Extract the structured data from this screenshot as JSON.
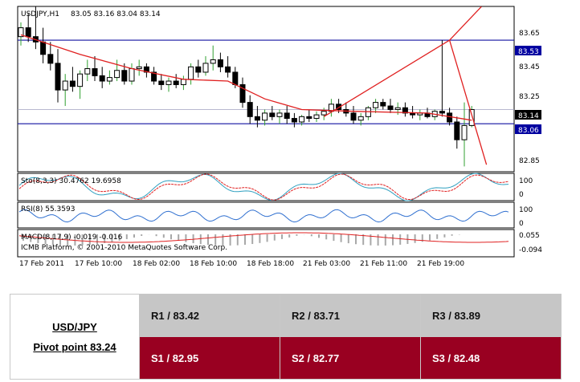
{
  "chart_data": {
    "type": "candlestick",
    "title": "USDJPY,H1",
    "ohlc_header": "83.05 83.16 83.04 83.14",
    "y_ticks": [
      "83.65",
      "83.45",
      "83.25",
      "82.85"
    ],
    "ylim": [
      82.79,
      83.72
    ],
    "x_labels": [
      "17 Feb 2011",
      "17 Feb 10:00",
      "18 Feb 02:00",
      "18 Feb 10:00",
      "18 Feb 18:00",
      "21 Feb 03:00",
      "21 Feb 11:00",
      "21 Feb 19:00"
    ],
    "levels": [
      {
        "name": "upper-level",
        "value": 83.53,
        "label": "83.53"
      },
      {
        "name": "lower-level",
        "value": 83.06,
        "label": "83.06"
      },
      {
        "name": "current-price",
        "value": 83.14,
        "label": "83.14"
      }
    ],
    "candles": [
      [
        83.55,
        83.63,
        83.5,
        83.6
      ],
      [
        83.6,
        83.68,
        83.52,
        83.55
      ],
      [
        83.55,
        83.72,
        83.48,
        83.52
      ],
      [
        83.52,
        83.6,
        83.4,
        83.45
      ],
      [
        83.45,
        83.52,
        83.36,
        83.4
      ],
      [
        83.4,
        83.48,
        83.18,
        83.25
      ],
      [
        83.25,
        83.34,
        83.16,
        83.3
      ],
      [
        83.3,
        83.38,
        83.24,
        83.27
      ],
      [
        83.27,
        83.36,
        83.2,
        83.34
      ],
      [
        83.34,
        83.42,
        83.3,
        83.37
      ],
      [
        83.37,
        83.44,
        83.3,
        83.33
      ],
      [
        83.33,
        83.38,
        83.26,
        83.3
      ],
      [
        83.3,
        83.36,
        83.28,
        83.32
      ],
      [
        83.32,
        83.42,
        83.3,
        83.36
      ],
      [
        83.36,
        83.4,
        83.28,
        83.3
      ],
      [
        83.3,
        83.4,
        83.28,
        83.37
      ],
      [
        83.37,
        83.42,
        83.33,
        83.38
      ],
      [
        83.38,
        83.4,
        83.32,
        83.35
      ],
      [
        83.35,
        83.38,
        83.28,
        83.3
      ],
      [
        83.3,
        83.34,
        83.25,
        83.28
      ],
      [
        83.28,
        83.32,
        83.24,
        83.3
      ],
      [
        83.3,
        83.34,
        83.26,
        83.28
      ],
      [
        83.28,
        83.33,
        83.25,
        83.31
      ],
      [
        83.31,
        83.4,
        83.28,
        83.38
      ],
      [
        83.38,
        83.42,
        83.32,
        83.35
      ],
      [
        83.35,
        83.44,
        83.33,
        83.4
      ],
      [
        83.4,
        83.5,
        83.36,
        83.42
      ],
      [
        83.42,
        83.46,
        83.35,
        83.38
      ],
      [
        83.38,
        83.44,
        83.32,
        83.35
      ],
      [
        83.35,
        83.38,
        83.26,
        83.28
      ],
      [
        83.28,
        83.32,
        83.15,
        83.18
      ],
      [
        83.18,
        83.22,
        83.06,
        83.1
      ],
      [
        83.1,
        83.16,
        83.04,
        83.08
      ],
      [
        83.08,
        83.14,
        83.05,
        83.12
      ],
      [
        83.12,
        83.16,
        83.08,
        83.1
      ],
      [
        83.1,
        83.14,
        83.06,
        83.12
      ],
      [
        83.12,
        83.16,
        83.06,
        83.09
      ],
      [
        83.09,
        83.12,
        83.04,
        83.07
      ],
      [
        83.07,
        83.11,
        83.05,
        83.1
      ],
      [
        83.1,
        83.14,
        83.07,
        83.09
      ],
      [
        83.09,
        83.13,
        83.07,
        83.11
      ],
      [
        83.11,
        83.15,
        83.08,
        83.13
      ],
      [
        83.13,
        83.2,
        83.1,
        83.17
      ],
      [
        83.17,
        83.2,
        83.12,
        83.14
      ],
      [
        83.14,
        83.18,
        83.1,
        83.12
      ],
      [
        83.12,
        83.16,
        83.06,
        83.08
      ],
      [
        83.08,
        83.12,
        83.05,
        83.1
      ],
      [
        83.1,
        83.16,
        83.08,
        83.15
      ],
      [
        83.15,
        83.2,
        83.12,
        83.18
      ],
      [
        83.18,
        83.2,
        83.14,
        83.16
      ],
      [
        83.16,
        83.2,
        83.12,
        83.14
      ],
      [
        83.14,
        83.18,
        83.11,
        83.15
      ],
      [
        83.15,
        83.18,
        83.1,
        83.12
      ],
      [
        83.12,
        83.16,
        83.09,
        83.11
      ],
      [
        83.11,
        83.14,
        83.08,
        83.12
      ],
      [
        83.12,
        83.15,
        83.09,
        83.1
      ],
      [
        83.1,
        83.14,
        83.08,
        83.13
      ],
      [
        83.13,
        83.53,
        83.1,
        83.12
      ],
      [
        83.12,
        83.15,
        83.05,
        83.07
      ],
      [
        83.07,
        83.1,
        82.92,
        82.97
      ],
      [
        82.97,
        83.18,
        82.82,
        83.05
      ],
      [
        83.05,
        83.16,
        83.04,
        83.14
      ]
    ],
    "ma_anchors": [
      [
        0,
        83.56
      ],
      [
        8,
        83.45
      ],
      [
        15,
        83.37
      ],
      [
        22,
        83.31
      ],
      [
        28,
        83.3
      ],
      [
        33,
        83.2
      ],
      [
        38,
        83.14
      ],
      [
        45,
        83.13
      ],
      [
        55,
        83.12
      ],
      [
        61,
        83.08
      ]
    ],
    "trendlines": [
      {
        "name": "rising-trendline",
        "from": [
          41,
          83.1
        ],
        "to": [
          58,
          83.53
        ]
      },
      {
        "name": "upper-trendline",
        "from": [
          58,
          83.53
        ],
        "to": [
          66,
          83.88
        ]
      },
      {
        "name": "falling-trendline",
        "from": [
          58,
          83.53
        ],
        "to": [
          63,
          82.83
        ]
      }
    ],
    "indicators": {
      "stochastic": {
        "label": "Sto(8,3,3) 30.4762 19.6958",
        "ticks": [
          "100",
          "0"
        ]
      },
      "rsi": {
        "label": "RSI(8) 55.3593",
        "ticks": [
          "100",
          "0"
        ]
      },
      "macd": {
        "label": "MACD(8,17,9) -0.019 -0.016",
        "ticks": [
          "0.055",
          "-0.094"
        ]
      }
    },
    "copyright": "ICMB Platform, © 2001-2010 MetaQuotes Software Corp."
  },
  "pivot": {
    "pair": "USD/JPY",
    "pivot_point": "Pivot point 83.24",
    "resistances": [
      "R1 / 83.42",
      "R2 / 83.71",
      "R3 / 83.89"
    ],
    "supports": [
      "S1 / 82.95",
      "S2 / 82.77",
      "S3 / 82.48"
    ]
  }
}
